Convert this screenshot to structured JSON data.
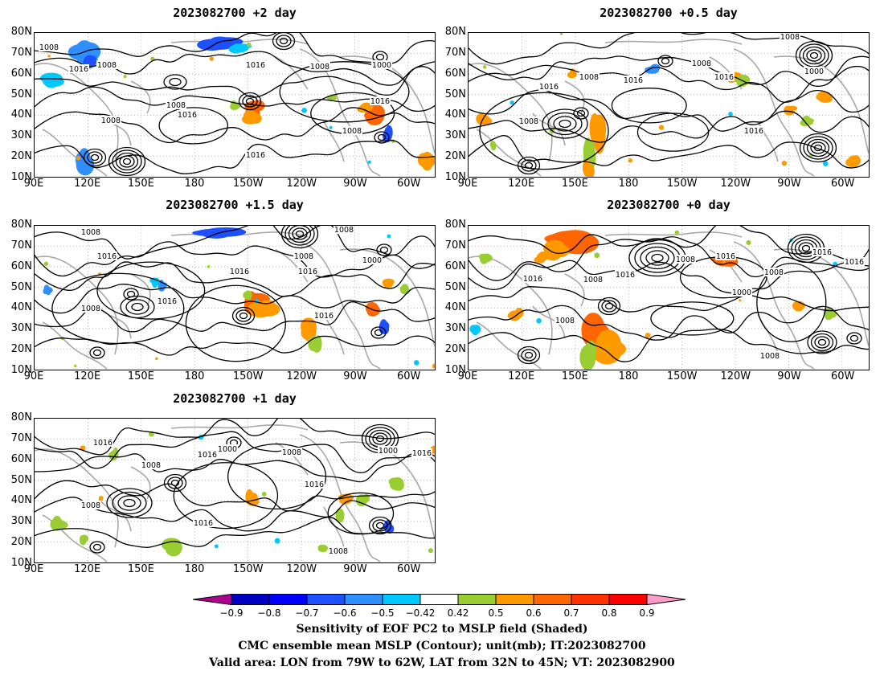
{
  "panels": [
    {
      "id": "p1",
      "title": "2023082700 +2 day"
    },
    {
      "id": "p2",
      "title": "2023082700 +0.5 day"
    },
    {
      "id": "p3",
      "title": "2023082700 +1.5 day"
    },
    {
      "id": "p4",
      "title": "2023082700 +0 day"
    },
    {
      "id": "p5",
      "title": "2023082700 +1 day"
    }
  ],
  "axes": {
    "lat_ticks": [
      "80N",
      "70N",
      "60N",
      "50N",
      "40N",
      "30N",
      "20N",
      "10N"
    ],
    "lon_ticks": [
      "90E",
      "120E",
      "150E",
      "180",
      "150W",
      "120W",
      "90W",
      "60W"
    ]
  },
  "contour_labels": {
    "p1": [
      "1008",
      "1016",
      "1016",
      "1008",
      "1016",
      "1008",
      "1008",
      "1016",
      "1000",
      "1008",
      "1016",
      "1008"
    ],
    "p2": [
      "1008",
      "1016",
      "1008",
      "1016",
      "1008",
      "1016",
      "1016",
      "1000",
      "1008"
    ],
    "p3": [
      "1008",
      "1016",
      "1016",
      "1008",
      "1016",
      "1008",
      "1016",
      "1008",
      "1000",
      "1016"
    ],
    "p4": [
      "1016",
      "1008",
      "1008",
      "1016",
      "1008",
      "1016",
      "1000",
      "1016",
      "1008",
      "1016",
      "1008"
    ],
    "p5": [
      "1016",
      "1008",
      "1000",
      "1016",
      "1008",
      "1008",
      "1000",
      "1016",
      "1016",
      "1008",
      "1016"
    ]
  },
  "colorbar": {
    "colors": [
      "#b0008f",
      "#0000c0",
      "#0000ff",
      "#1e50ff",
      "#2f8fff",
      "#00c8ff",
      "#ffffff",
      "#9acd32",
      "#ff9900",
      "#ff6600",
      "#ff3300",
      "#ff0000",
      "#ff9fc8"
    ],
    "labels": [
      "−0.9",
      "−0.8",
      "−0.7",
      "−0.6",
      "−0.5",
      "−0.42",
      "0.42",
      "0.5",
      "0.6",
      "0.7",
      "0.8",
      "0.9"
    ]
  },
  "captions": {
    "line1": "Sensitivity of EOF PC2 to MSLP field (Shaded)",
    "line2": "CMC ensemble mean MSLP (Contour); unit(mb); IT:2023082700",
    "line3": "Valid area: LON from 79W to 62W, LAT from 32N to 45N; VT: 2023082900"
  }
}
